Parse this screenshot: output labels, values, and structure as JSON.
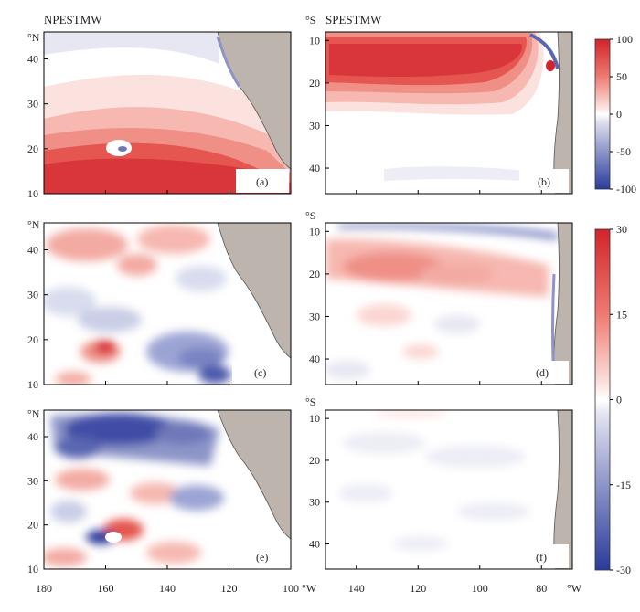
{
  "chart_data": {
    "type": "heatmap",
    "titles": {
      "north": "NPESTMW",
      "south": "SPESTMW"
    },
    "units": {
      "lat_north": "°N",
      "lat_south": "°S",
      "lon": "°W"
    },
    "north_lat_ticks": [
      40,
      30,
      20,
      10
    ],
    "south_lat_ticks": [
      10,
      20,
      30,
      40
    ],
    "north_lon_ticks": [
      180,
      160,
      140,
      120,
      100
    ],
    "south_lon_ticks": [
      140,
      120,
      100,
      80
    ],
    "north_domain": {
      "lon": [
        180,
        100
      ],
      "lat": [
        10,
        46
      ]
    },
    "south_domain": {
      "lon": [
        150,
        70
      ],
      "lat": [
        8,
        46
      ]
    },
    "colorbars": [
      {
        "name": "top",
        "min": -100,
        "max": 100,
        "ticks": [
          100,
          50,
          0,
          -50,
          -100
        ]
      },
      {
        "name": "bottom",
        "min": -30,
        "max": 30,
        "ticks": [
          30,
          15,
          0,
          -15,
          -30
        ]
      }
    ],
    "panels": [
      {
        "label": "(a)",
        "hemisphere": "north",
        "scale": "top",
        "description_values": {
          "southern_band_max": 85,
          "mid_lat_value": 20,
          "northern_value": -10
        }
      },
      {
        "label": "(b)",
        "hemisphere": "south",
        "scale": "top",
        "description_values": {
          "tropical_band_max": 90,
          "subtropical_value": 5,
          "southern_value": -5
        }
      },
      {
        "label": "(c)",
        "hemisphere": "north",
        "scale": "bottom",
        "description_values": {
          "anomaly_range": [
            -20,
            22
          ]
        }
      },
      {
        "label": "(d)",
        "hemisphere": "south",
        "scale": "bottom",
        "description_values": {
          "band_max": 20,
          "coastal_min": -25
        }
      },
      {
        "label": "(e)",
        "hemisphere": "north",
        "scale": "bottom",
        "description_values": {
          "northern_min": -25,
          "island_max": 28
        }
      },
      {
        "label": "(f)",
        "hemisphere": "south",
        "scale": "bottom",
        "description_values": {
          "typical_value": -3
        }
      }
    ],
    "colors": {
      "positive": "#d2232a",
      "negative": "#2b3b9a",
      "neutral": "#ffffff",
      "land": "#bdb5ad"
    }
  }
}
